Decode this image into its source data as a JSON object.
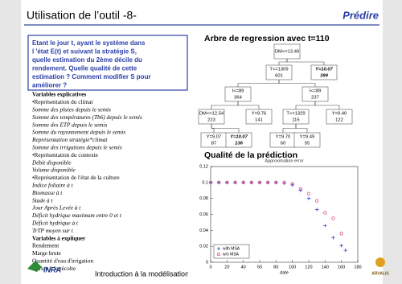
{
  "header": {
    "title": "Utilisation de l’outil -8-",
    "section": "Prédire"
  },
  "question": [
    "Etant le jour t, ayant le système dans",
    "l 'état E(t) et suivant la stratégie S,",
    "quelle estimation du 2ème décile du",
    "rendement. Quelle qualité de cette",
    "estimation ? Comment modifier S pour",
    "améliorer ?"
  ],
  "variables": {
    "explicatives": {
      "title": "Variables explicatives",
      "groups": [
        {
          "title": "•Représentation du climat",
          "items": [
            "Somme des pluies depuis le semis",
            "Somme des températures (Tb6) depuis le semis",
            "Somme des ETP depuis le semis",
            "Somme du rayonnement depuis le semis",
            "Représentation stratégie*climat",
            "Somme des irrigations depuis le semis"
          ]
        },
        {
          "title": "•Représentation du contexte",
          "items": [
            "Débit disponible",
            "Volume disponible"
          ]
        },
        {
          "title": "•Représentation de l'état de la culture",
          "items": [
            "Indice foliaire à t",
            "Biomasse à t",
            "Stade à t",
            "Jour Après Levée à t",
            "Déficit hydrique maximum entre 0 et t",
            "Déficit hydrique à t",
            "TrTP moyen sur t"
          ]
        }
      ]
    },
    "expliquer": {
      "title": "Variables à expliquer",
      "items": [
        "Rendement",
        "Marge brute",
        "Quantité d'eau d'irrigation",
        "Déficit à la récolte"
      ]
    }
  },
  "tree": {
    "title": "Arbre de regression avec t=110",
    "nodes": [
      {
        "label": "DM<=13.40",
        "count": null
      },
      {
        "label": "T<=1309",
        "count": 601
      },
      {
        "label": "Y=10.07",
        "count": 399
      },
      {
        "label": "I<=89",
        "count": 364
      },
      {
        "label": "I<=89",
        "count": 237
      },
      {
        "label": "DM<=12.54",
        "count": 223
      },
      {
        "label": "Y=9.76",
        "count": 141
      },
      {
        "label": "T<=1329",
        "count": 115
      },
      {
        "label": "Y=9.40",
        "count": 122
      },
      {
        "label": "Y=9.07",
        "count": 87
      },
      {
        "label": "Y=10.07",
        "count": 136
      },
      {
        "label": "Y=9.70",
        "count": 60
      },
      {
        "label": "Y=9.49",
        "count": 55
      }
    ]
  },
  "quality_title": "Qualité de la prédiction",
  "chart_data": {
    "type": "scatter",
    "title": "Approximation error",
    "x_label": "date",
    "xlim": [
      0,
      180
    ],
    "xticks": [
      0,
      20,
      40,
      60,
      80,
      100,
      120,
      140,
      160,
      180
    ],
    "ylim": [
      0,
      0.12
    ],
    "yticks": [
      0,
      0.02,
      0.04,
      0.06,
      0.08,
      0.1,
      0.12
    ],
    "legend": "lower left",
    "series": [
      {
        "name": "with MSA",
        "color": "#3344cc",
        "marker": "plus",
        "x": [
          0,
          10,
          20,
          30,
          40,
          50,
          60,
          70,
          80,
          90,
          100,
          110,
          120,
          130,
          140,
          150,
          160,
          165
        ],
        "values": [
          0.1,
          0.1,
          0.1,
          0.1,
          0.1,
          0.1,
          0.1,
          0.1,
          0.1,
          0.099,
          0.097,
          0.09,
          0.08,
          0.066,
          0.046,
          0.031,
          0.021,
          0.015
        ]
      },
      {
        "name": "w/o MSA",
        "color": "#dd3377",
        "marker": "circle",
        "x": [
          0,
          10,
          20,
          30,
          40,
          50,
          60,
          70,
          80,
          90,
          100,
          110,
          120,
          130,
          140,
          150,
          160
        ],
        "values": [
          0.1,
          0.1,
          0.1,
          0.1,
          0.1,
          0.1,
          0.1,
          0.1,
          0.1,
          0.1,
          0.098,
          0.092,
          0.086,
          0.077,
          0.062,
          0.055,
          0.036
        ]
      }
    ]
  },
  "footer": {
    "text": "Introduction à la modélisation",
    "logo_left": "INRA",
    "logo_right": "ARVALIS"
  }
}
